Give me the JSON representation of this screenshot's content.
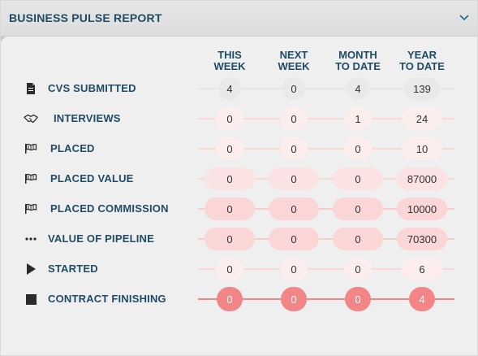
{
  "header": {
    "title": "BUSINESS PULSE REPORT",
    "collapse_icon": "chevron-down-icon"
  },
  "columns": [
    {
      "line1": "THIS",
      "line2": "WEEK"
    },
    {
      "line1": "NEXT",
      "line2": "WEEK"
    },
    {
      "line1": "MONTH",
      "line2": "TO DATE"
    },
    {
      "line1": "YEAR",
      "line2": "TO DATE"
    }
  ],
  "rows": [
    {
      "label": "CVS SUBMITTED",
      "icon": "document-icon",
      "values": [
        "4",
        "0",
        "4",
        "139"
      ],
      "bubble_color": "#e9e9e9",
      "line_color": "#e6e6e6"
    },
    {
      "label": "INTERVIEWS",
      "icon": "handshake-icon",
      "values": [
        "0",
        "0",
        "1",
        "24"
      ],
      "bubble_color": "#fdeeee",
      "line_color": "#fbd7d7"
    },
    {
      "label": "PLACED",
      "icon": "flag-icon",
      "values": [
        "0",
        "0",
        "0",
        "10"
      ],
      "bubble_color": "#fdeeee",
      "line_color": "#fbd7d7"
    },
    {
      "label": "PLACED VALUE",
      "icon": "flag-icon",
      "values": [
        "0",
        "0",
        "0",
        "87000"
      ],
      "bubble_color": "#fce3e3",
      "line_color": "#fbd7d7"
    },
    {
      "label": "PLACED COMMISSION",
      "icon": "flag-icon",
      "values": [
        "0",
        "0",
        "0",
        "10000"
      ],
      "bubble_color": "#fad6d6",
      "line_color": "#f9cccc"
    },
    {
      "label": "VALUE OF PIPELINE",
      "icon": "ellipsis-icon",
      "values": [
        "0",
        "0",
        "0",
        "70300"
      ],
      "bubble_color": "#fad6d6",
      "line_color": "#f9cccc"
    },
    {
      "label": "STARTED",
      "icon": "play-icon",
      "values": [
        "0",
        "0",
        "0",
        "6"
      ],
      "bubble_color": "#fdeeee",
      "line_color": "#fbd7d7"
    },
    {
      "label": "CONTRACT FINISHING",
      "icon": "stop-icon",
      "values": [
        "0",
        "0",
        "0",
        "4"
      ],
      "bubble_color": "#f28585",
      "line_color": "#f28585"
    }
  ]
}
